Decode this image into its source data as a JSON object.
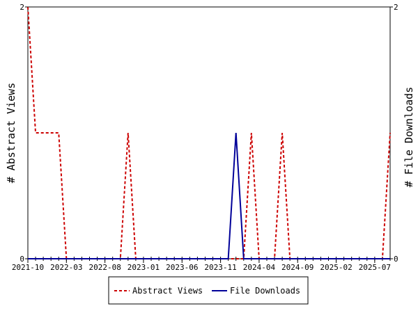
{
  "chart_data": {
    "type": "line",
    "x_tick_labels": [
      "2021-10",
      "2022-03",
      "2022-08",
      "2023-01",
      "2023-06",
      "2023-11",
      "2024-04",
      "2024-09",
      "2025-02",
      "2025-07"
    ],
    "x_months": [
      "2021-10",
      "2021-11",
      "2021-12",
      "2022-01",
      "2022-02",
      "2022-03",
      "2022-04",
      "2022-05",
      "2022-06",
      "2022-07",
      "2022-08",
      "2022-09",
      "2022-10",
      "2022-11",
      "2022-12",
      "2023-01",
      "2023-02",
      "2023-03",
      "2023-04",
      "2023-05",
      "2023-06",
      "2023-07",
      "2023-08",
      "2023-09",
      "2023-10",
      "2023-11",
      "2023-12",
      "2024-01",
      "2024-02",
      "2024-03",
      "2024-04",
      "2024-05",
      "2024-06",
      "2024-07",
      "2024-08",
      "2024-09",
      "2024-10",
      "2024-11",
      "2024-12",
      "2025-01",
      "2025-02",
      "2025-03",
      "2025-04",
      "2025-05",
      "2025-06",
      "2025-07",
      "2025-08",
      "2025-09"
    ],
    "ylabel_left": "# Abstract Views",
    "ylabel_right": "# File Downloads",
    "ylim_left": [
      0,
      2
    ],
    "ylim_right": [
      0,
      2
    ],
    "y_ticks_left": [
      "0",
      "2"
    ],
    "y_ticks_right": [
      "0",
      "2"
    ],
    "legend_position": "bottom",
    "series": [
      {
        "name": "Abstract Views",
        "axis": "left",
        "color": "#cc0000",
        "dash": "dashed",
        "values": [
          2,
          1,
          1,
          1,
          1,
          0,
          0,
          0,
          0,
          0,
          0,
          0,
          0,
          1,
          0,
          0,
          0,
          0,
          0,
          0,
          0,
          0,
          0,
          0,
          0,
          0,
          0,
          0,
          0,
          1,
          0,
          0,
          0,
          1,
          0,
          0,
          0,
          0,
          0,
          0,
          0,
          0,
          0,
          0,
          0,
          0,
          0,
          1
        ]
      },
      {
        "name": "File Downloads",
        "axis": "right",
        "color": "#000099",
        "dash": "solid",
        "values": [
          0,
          0,
          0,
          0,
          0,
          0,
          0,
          0,
          0,
          0,
          0,
          0,
          0,
          0,
          0,
          0,
          0,
          0,
          0,
          0,
          0,
          0,
          0,
          0,
          0,
          0,
          0,
          1,
          0,
          0,
          0,
          0,
          0,
          0,
          0,
          0,
          0,
          0,
          0,
          0,
          0,
          0,
          0,
          0,
          0,
          0,
          0,
          0
        ]
      }
    ]
  }
}
